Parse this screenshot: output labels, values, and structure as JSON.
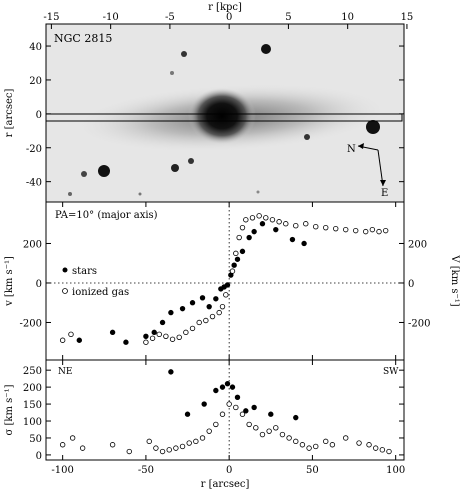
{
  "figure": {
    "galaxy_name": "NGC 2815",
    "compass": {
      "north": "N",
      "east": "E"
    },
    "slit_label": "PA=10° (major axis)",
    "side_left": "NE",
    "side_right": "SW"
  },
  "chart_data": [
    {
      "type": "image",
      "name": "image_panel",
      "xlabel": "",
      "x2label": "r [kpc]",
      "ylabel": "r [arcsec]",
      "xlim": [
        -110,
        105
      ],
      "ylim": [
        -52,
        53
      ],
      "x2ticks": [
        -15,
        -10,
        -5,
        0,
        5,
        10,
        15
      ],
      "yticks": [
        -40,
        -20,
        0,
        20,
        40
      ],
      "kpc_per_arcsec": 0.1405
    },
    {
      "type": "scatter",
      "name": "velocity_panel",
      "ylabel": "v [km s⁻¹]",
      "y2label": "V [km s⁻¹]",
      "xlim": [
        -110,
        105
      ],
      "ylim": [
        -390,
        410
      ],
      "yticks": [
        -200,
        0,
        200
      ],
      "legend": {
        "stars": "stars",
        "gas": "ionized gas"
      },
      "series": [
        {
          "name": "stars",
          "marker": "filled",
          "x": [
            -90,
            -70,
            -62,
            -50,
            -45,
            -40,
            -35,
            -28,
            -22,
            -16,
            -12,
            -8,
            -5,
            -3,
            -1,
            1,
            3,
            5,
            8,
            12,
            15,
            20,
            28,
            38,
            45
          ],
          "y": [
            -290,
            -250,
            -300,
            -270,
            -250,
            -200,
            -150,
            -130,
            -100,
            -75,
            -120,
            -80,
            -30,
            -20,
            -10,
            40,
            90,
            120,
            160,
            230,
            260,
            300,
            270,
            220,
            200
          ]
        },
        {
          "name": "ionized gas",
          "marker": "open",
          "x": [
            -100,
            -95,
            -50,
            -46,
            -42,
            -38,
            -34,
            -30,
            -26,
            -22,
            -18,
            -14,
            -10,
            -6,
            -4,
            -2,
            2,
            4,
            6,
            8,
            10,
            14,
            18,
            22,
            26,
            30,
            34,
            40,
            46,
            52,
            58,
            64,
            70,
            76,
            82,
            86,
            90,
            94
          ],
          "y": [
            -290,
            -260,
            -300,
            -280,
            -260,
            -270,
            -285,
            -275,
            -250,
            -230,
            -200,
            -190,
            -170,
            -150,
            -120,
            -60,
            60,
            150,
            230,
            280,
            320,
            330,
            340,
            330,
            320,
            310,
            300,
            290,
            300,
            285,
            280,
            275,
            270,
            265,
            260,
            270,
            260,
            265
          ]
        }
      ]
    },
    {
      "type": "scatter",
      "name": "dispersion_panel",
      "xlabel": "r [arcsec]",
      "ylabel": "σ [km s⁻¹]",
      "xlim": [
        -110,
        105
      ],
      "ylim": [
        -15,
        280
      ],
      "xticks": [
        -100,
        -50,
        0,
        50,
        100
      ],
      "yticks": [
        0,
        50,
        100,
        150,
        200,
        250
      ],
      "series": [
        {
          "name": "stars",
          "marker": "filled",
          "x": [
            -35,
            -25,
            -15,
            -8,
            -4,
            -1,
            2,
            5,
            10,
            15,
            25,
            40
          ],
          "y": [
            245,
            120,
            150,
            190,
            200,
            210,
            200,
            170,
            130,
            140,
            120,
            110
          ]
        },
        {
          "name": "ionized gas",
          "marker": "open",
          "x": [
            -100,
            -94,
            -88,
            -70,
            -60,
            -48,
            -44,
            -40,
            -36,
            -32,
            -28,
            -24,
            -20,
            -16,
            -12,
            -8,
            -4,
            0,
            4,
            8,
            12,
            16,
            20,
            24,
            28,
            32,
            36,
            40,
            44,
            48,
            52,
            58,
            62,
            70,
            78,
            84,
            88,
            92,
            96
          ],
          "y": [
            30,
            50,
            20,
            30,
            10,
            40,
            20,
            10,
            15,
            20,
            25,
            35,
            40,
            50,
            70,
            90,
            120,
            150,
            140,
            120,
            90,
            80,
            60,
            70,
            80,
            60,
            50,
            40,
            30,
            20,
            25,
            40,
            30,
            50,
            35,
            30,
            20,
            15,
            10
          ]
        }
      ]
    }
  ]
}
